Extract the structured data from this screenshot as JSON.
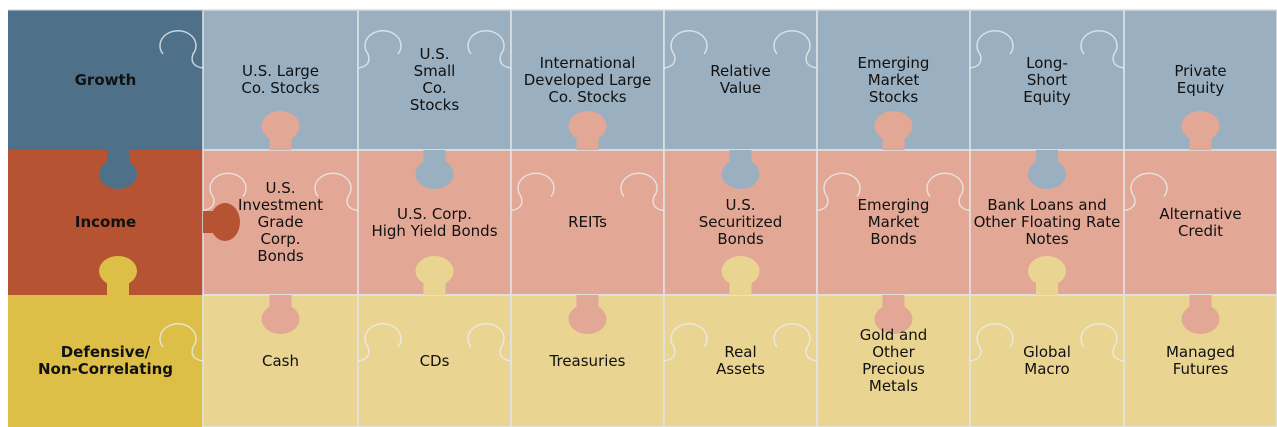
{
  "rows": [
    {
      "header": [
        "Growth"
      ],
      "cells": [
        [
          "U.S. Large",
          "Co. Stocks"
        ],
        [
          "U.S.",
          "Small",
          "Co.",
          "Stocks"
        ],
        [
          "International",
          "Developed Large",
          "Co. Stocks"
        ],
        [
          "Relative",
          "Value"
        ],
        [
          "Emerging",
          "Market",
          "Stocks"
        ],
        [
          "Long-",
          "Short",
          "Equity"
        ],
        [
          "Private",
          "Equity"
        ]
      ]
    },
    {
      "header": [
        "Income"
      ],
      "cells": [
        [
          "U.S.",
          "Investment",
          "Grade",
          "Corp.",
          "Bonds"
        ],
        [
          "U.S. Corp.",
          "High Yield Bonds"
        ],
        [
          "REITs"
        ],
        [
          "U.S.",
          "Securitized",
          "Bonds"
        ],
        [
          "Emerging",
          "Market",
          "Bonds"
        ],
        [
          "Bank Loans and",
          "Other Floating Rate",
          "Notes"
        ],
        [
          "Alternative",
          "Credit"
        ]
      ]
    },
    {
      "header": [
        "Defensive/",
        "Non-Correlating"
      ],
      "cells": [
        [
          "Cash"
        ],
        [
          "CDs"
        ],
        [
          "Treasuries"
        ],
        [
          "Real",
          "Assets"
        ],
        [
          "Gold and",
          "Other",
          "Precious",
          "Metals"
        ],
        [
          "Global",
          "Macro"
        ],
        [
          "Managed",
          "Futures"
        ]
      ]
    }
  ]
}
